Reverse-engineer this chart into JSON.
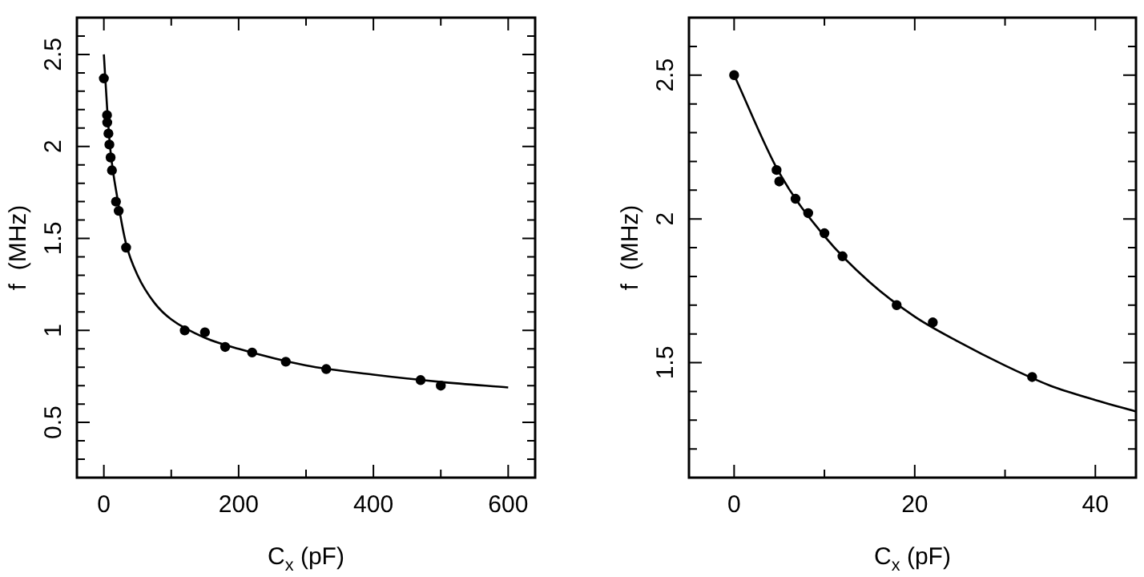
{
  "chart_data": [
    {
      "type": "scatter",
      "xlabel": "C$_{x}$ (pF)",
      "ylabel": "f  (MHz)",
      "xlim": [
        -40,
        640
      ],
      "ylim": [
        0.2,
        2.7
      ],
      "marker": "circle",
      "xticks": [
        0,
        {
          "value": 100,
          "label": null
        },
        200,
        {
          "value": 300,
          "label": null
        },
        400,
        {
          "value": 500,
          "label": null
        },
        600
      ],
      "yticks": [
        {
          "value": 0.3,
          "label": null
        },
        {
          "value": 0.4,
          "label": null
        },
        0.5,
        {
          "value": 0.6,
          "label": null
        },
        {
          "value": 0.7,
          "label": null
        },
        {
          "value": 0.8,
          "label": null
        },
        {
          "value": 0.9,
          "label": null
        },
        1,
        {
          "value": 1.1,
          "label": null
        },
        {
          "value": 1.2,
          "label": null
        },
        {
          "value": 1.3,
          "label": null
        },
        {
          "value": 1.4,
          "label": null
        },
        1.5,
        {
          "value": 1.6,
          "label": null
        },
        {
          "value": 1.7,
          "label": null
        },
        {
          "value": 1.8,
          "label": null
        },
        {
          "value": 1.9,
          "label": null
        },
        2,
        {
          "value": 2.1,
          "label": null
        },
        {
          "value": 2.2,
          "label": null
        },
        {
          "value": 2.3,
          "label": null
        },
        {
          "value": 2.4,
          "label": null
        },
        2.5,
        {
          "value": 2.6,
          "label": null
        }
      ],
      "series": [
        {
          "type": "scatter",
          "color": "#000000",
          "x": [
            0,
            4.7,
            5,
            6.8,
            8.2,
            10,
            12,
            18,
            22,
            33,
            120,
            150,
            180,
            220,
            270,
            330,
            470,
            500
          ],
          "values": [
            2.37,
            2.17,
            2.13,
            2.07,
            2.01,
            1.94,
            1.87,
            1.7,
            1.65,
            1.45,
            1.0,
            0.99,
            0.91,
            0.88,
            0.83,
            0.79,
            0.73,
            0.7
          ]
        },
        {
          "type": "line",
          "color": "#000000",
          "marker": "none",
          "x": [
            0,
            5,
            10,
            20,
            33,
            50,
            75,
            100,
            150,
            200,
            300,
            400,
            500,
            600
          ],
          "values": [
            2.5,
            2.2,
            1.97,
            1.72,
            1.47,
            1.3,
            1.15,
            1.06,
            0.96,
            0.9,
            0.81,
            0.76,
            0.72,
            0.69
          ]
        }
      ]
    },
    {
      "type": "scatter",
      "xlabel": "C$_{x}$ (pF)",
      "ylabel": "f  (MHz)",
      "xlim": [
        -5,
        44.5
      ],
      "ylim": [
        1.1,
        2.7
      ],
      "marker": "circle",
      "xticks": [
        0,
        {
          "value": 10,
          "label": null
        },
        20,
        {
          "value": 30,
          "label": null
        },
        40
      ],
      "yticks": [
        {
          "value": 1.2,
          "label": null
        },
        {
          "value": 1.3,
          "label": null
        },
        {
          "value": 1.4,
          "label": null
        },
        1.5,
        {
          "value": 1.6,
          "label": null
        },
        {
          "value": 1.7,
          "label": null
        },
        {
          "value": 1.8,
          "label": null
        },
        {
          "value": 1.9,
          "label": null
        },
        2,
        {
          "value": 2.1,
          "label": null
        },
        {
          "value": 2.2,
          "label": null
        },
        {
          "value": 2.3,
          "label": null
        },
        {
          "value": 2.4,
          "label": null
        },
        2.5,
        {
          "value": 2.6,
          "label": null
        }
      ],
      "series": [
        {
          "type": "scatter",
          "color": "#000000",
          "x": [
            0,
            4.7,
            5,
            6.8,
            8.2,
            10,
            12,
            18,
            22,
            33
          ],
          "values": [
            2.5,
            2.17,
            2.13,
            2.07,
            2.02,
            1.95,
            1.87,
            1.7,
            1.64,
            1.45
          ]
        },
        {
          "type": "line",
          "color": "#000000",
          "marker": "none",
          "x": [
            0,
            5,
            10,
            15,
            20,
            25,
            30,
            35,
            40,
            44.5
          ],
          "values": [
            2.5,
            2.16,
            1.94,
            1.78,
            1.66,
            1.57,
            1.49,
            1.42,
            1.37,
            1.33
          ]
        }
      ]
    }
  ]
}
